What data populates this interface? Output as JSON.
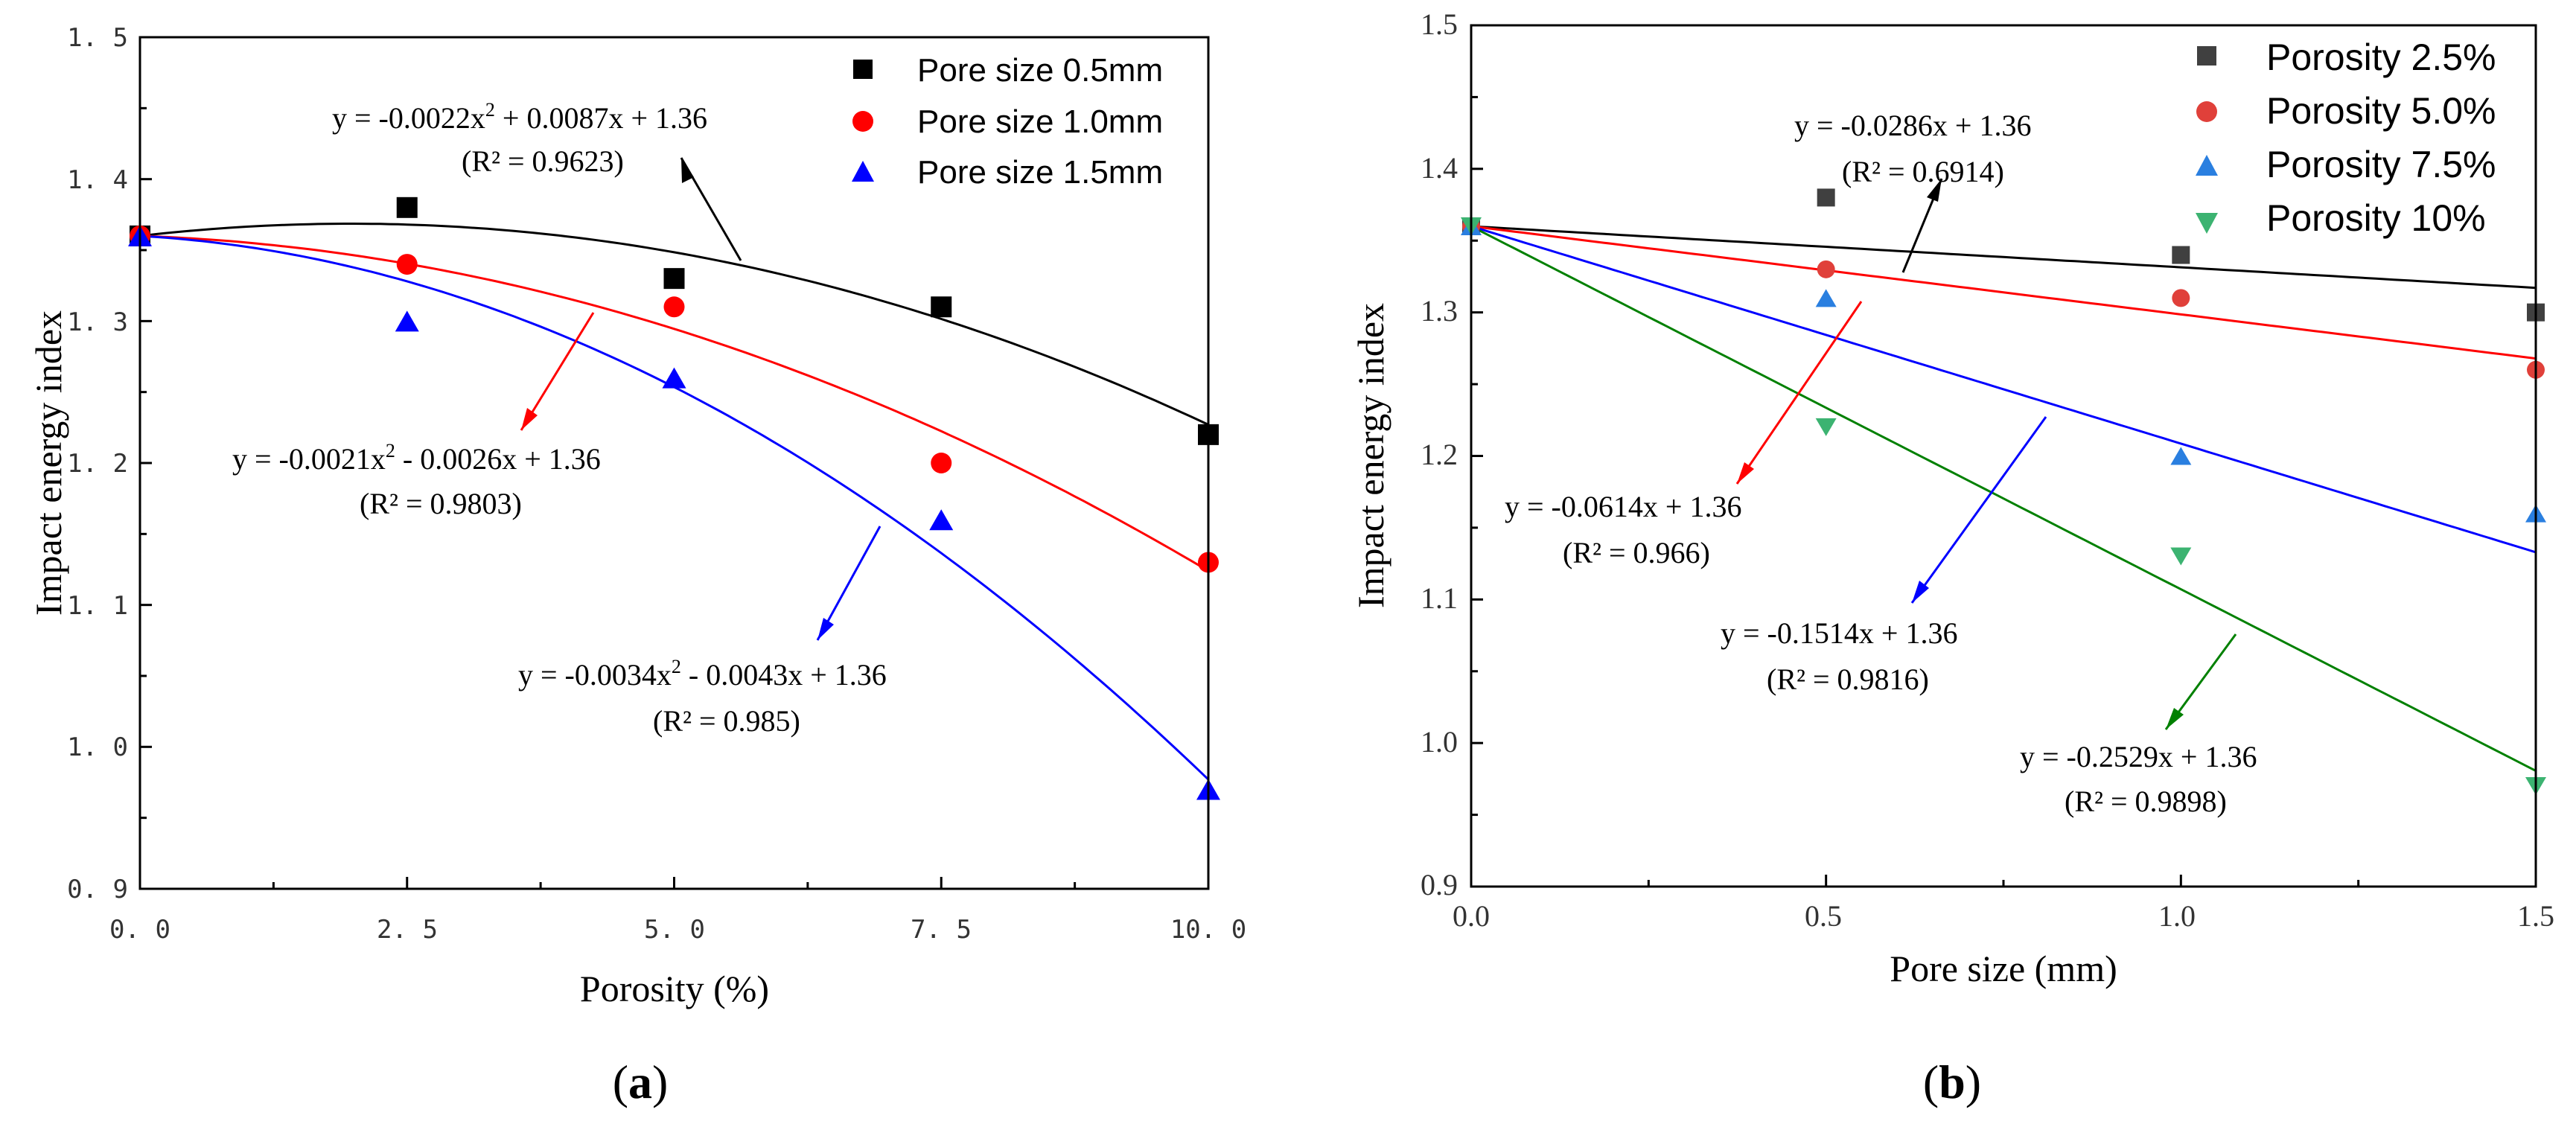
{
  "chart_data": [
    {
      "type": "scatter",
      "panel_label": "a",
      "xlabel": "Porosity (%)",
      "ylabel": "Impact energy index",
      "xlim": [
        0,
        10
      ],
      "ylim": [
        0.9,
        1.5
      ],
      "xticks": [
        "0. 0",
        "2. 5",
        "5. 0",
        "7. 5",
        "10. 0"
      ],
      "yticks": [
        "0. 9",
        "1. 0",
        "1. 1",
        "1. 2",
        "1. 3",
        "1. 4",
        "1. 5"
      ],
      "legend_position": "top-right",
      "series": [
        {
          "name": "Pore size  0.5mm",
          "marker": "square",
          "color": "#000000",
          "x": [
            0,
            2.5,
            5,
            7.5,
            10
          ],
          "y": [
            1.36,
            1.38,
            1.33,
            1.31,
            1.22
          ],
          "fit": {
            "a": -0.0022,
            "b": 0.0087,
            "c": 1.36
          },
          "equation_parts": [
            "y = -0.0022x",
            "2",
            " + 0.0087x + 1.36"
          ],
          "r2_label": "(R² = 0.9623)"
        },
        {
          "name": "Pore size  1.0mm",
          "marker": "circle",
          "color": "#ff0000",
          "x": [
            0,
            2.5,
            5,
            7.5,
            10
          ],
          "y": [
            1.36,
            1.34,
            1.31,
            1.2,
            1.13
          ],
          "fit": {
            "a": -0.0021,
            "b": -0.0026,
            "c": 1.36
          },
          "equation_parts": [
            "y = -0.0021x",
            "2",
            " - 0.0026x + 1.36"
          ],
          "r2_label": "(R² = 0.9803)"
        },
        {
          "name": "Pore size  1.5mm",
          "marker": "triangle",
          "color": "#0000ff",
          "x": [
            0,
            2.5,
            5,
            7.5,
            10
          ],
          "y": [
            1.36,
            1.3,
            1.26,
            1.16,
            0.97
          ],
          "fit": {
            "a": -0.0034,
            "b": -0.0043,
            "c": 1.36
          },
          "equation_parts": [
            "y = -0.0034x",
            "2",
            " - 0.0043x + 1.36"
          ],
          "r2_label": "(R² = 0.985)"
        }
      ]
    },
    {
      "type": "scatter",
      "panel_label": "b",
      "xlabel": "Pore size (mm)",
      "ylabel": "Impact energy index",
      "xlim": [
        0,
        1.5
      ],
      "ylim": [
        0.9,
        1.5
      ],
      "xticks": [
        "0.0",
        "0.5",
        "1.0",
        "1.5"
      ],
      "yticks": [
        "0.9",
        "1.0",
        "1.1",
        "1.2",
        "1.3",
        "1.4",
        "1.5"
      ],
      "legend_position": "top-right",
      "series": [
        {
          "name": "Porosity 2.5%",
          "marker": "square",
          "color": "#404040",
          "line_color": "#000000",
          "x": [
            0,
            0.5,
            1.0,
            1.5
          ],
          "y": [
            1.36,
            1.38,
            1.34,
            1.3
          ],
          "fit": {
            "a": 0,
            "b": -0.0286,
            "c": 1.36
          },
          "equation_parts": [
            "y = -0.0286x + 1.36"
          ],
          "r2_label": "(R² = 0.6914)"
        },
        {
          "name": "Porosity 5.0%",
          "marker": "circle",
          "color": "#e0403a",
          "line_color": "#ff0000",
          "x": [
            0,
            0.5,
            1.0,
            1.5
          ],
          "y": [
            1.36,
            1.33,
            1.31,
            1.26
          ],
          "fit": {
            "a": 0,
            "b": -0.0614,
            "c": 1.36
          },
          "equation_parts": [
            "y = -0.0614x + 1.36"
          ],
          "r2_label": "(R² = 0.966)"
        },
        {
          "name": "Porosity 7.5%",
          "marker": "triangle",
          "color": "#2a7fe0",
          "line_color": "#0000ff",
          "x": [
            0,
            0.5,
            1.0,
            1.5
          ],
          "y": [
            1.36,
            1.31,
            1.2,
            1.16
          ],
          "fit": {
            "a": 0,
            "b": -0.1514,
            "c": 1.36
          },
          "equation_parts": [
            "y = -0.1514x + 1.36"
          ],
          "r2_label": "(R² = 0.9816)"
        },
        {
          "name": "Porosity 10%",
          "marker": "triangle-down",
          "color": "#3cb371",
          "line_color": "#008000",
          "x": [
            0,
            0.5,
            1.0,
            1.5
          ],
          "y": [
            1.36,
            1.22,
            1.13,
            0.97
          ],
          "fit": {
            "a": 0,
            "b": -0.2529,
            "c": 1.36
          },
          "equation_parts": [
            "y = -0.2529x + 1.36"
          ],
          "r2_label": "(R² = 0.9898)"
        }
      ]
    }
  ]
}
